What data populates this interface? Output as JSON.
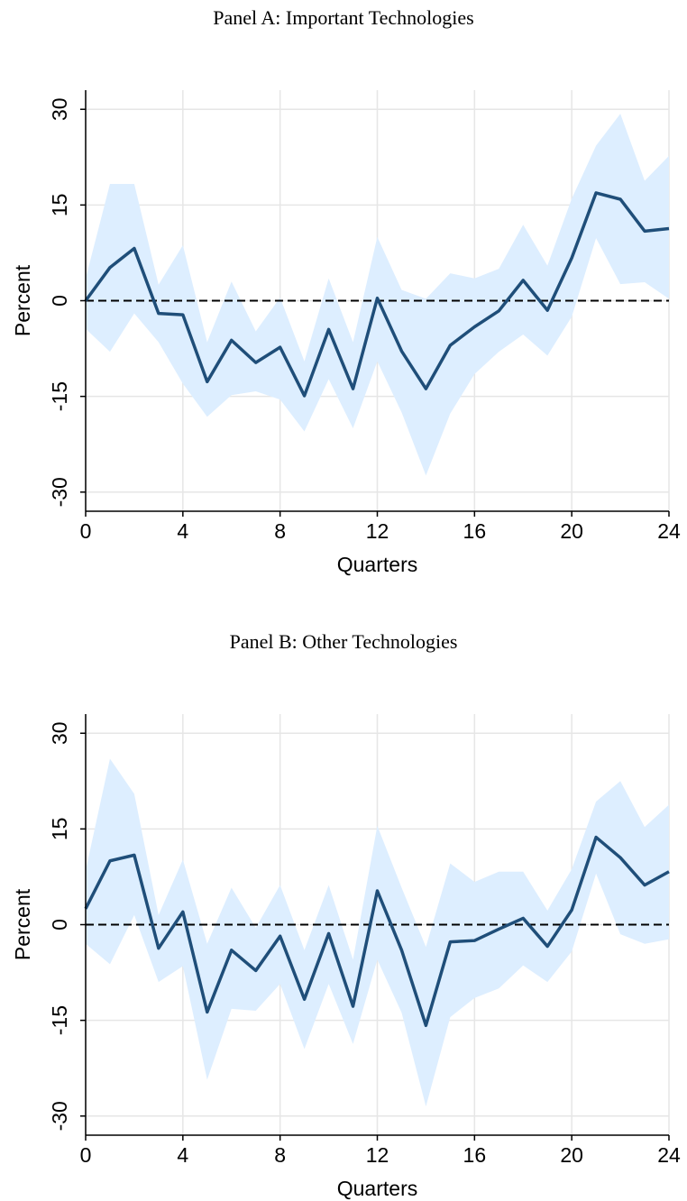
{
  "chart_data": [
    {
      "type": "line",
      "title": "Panel A: Important Technologies",
      "xlabel": "Quarters",
      "ylabel": "Percent",
      "x": [
        0,
        1,
        2,
        3,
        4,
        5,
        6,
        7,
        8,
        9,
        10,
        11,
        12,
        13,
        14,
        15,
        16,
        17,
        18,
        19,
        20,
        21,
        22,
        23,
        24
      ],
      "values": [
        0,
        5.2,
        8.2,
        -2,
        -2.2,
        -12.7,
        -6.2,
        -9.7,
        -7.3,
        -14.9,
        -4.5,
        -13.8,
        0.4,
        -7.9,
        -13.8,
        -7,
        -4.1,
        -1.6,
        3.2,
        -1.5,
        6.7,
        16.9,
        15.9,
        10.9,
        11.3
      ],
      "ci_upper": [
        3.5,
        18.3,
        18.3,
        2.5,
        8.7,
        -6.5,
        3,
        -4.8,
        0.5,
        -9.5,
        3.5,
        -6.5,
        10,
        1.7,
        0.3,
        4.3,
        3.5,
        5,
        11.9,
        5.5,
        16,
        24.3,
        29.3,
        18.8,
        22.7
      ],
      "ci_lower": [
        -4.4,
        -8,
        -2,
        -6.5,
        -13,
        -18.2,
        -14.8,
        -14.2,
        -15.5,
        -20.5,
        -12.3,
        -20,
        -9.5,
        -17.5,
        -27.4,
        -17.7,
        -11.5,
        -8,
        -5.3,
        -8.6,
        -2.5,
        9.8,
        2.6,
        2.9,
        0.3
      ],
      "color": "#1f4e79",
      "band_color": "#ddeeff",
      "hline": 0,
      "xlim": [
        0,
        24
      ],
      "xticks": [
        0,
        4,
        8,
        12,
        16,
        20,
        24
      ],
      "ylim": [
        -33,
        33
      ],
      "yticks": [
        30,
        15,
        0,
        -15,
        -30
      ],
      "grid": true
    },
    {
      "type": "line",
      "title": "Panel B: Other Technologies",
      "xlabel": "Quarters",
      "ylabel": "Percent",
      "x": [
        0,
        1,
        2,
        3,
        4,
        5,
        6,
        7,
        8,
        9,
        10,
        11,
        12,
        13,
        14,
        15,
        16,
        17,
        18,
        19,
        20,
        21,
        22,
        23,
        24
      ],
      "values": [
        2.5,
        10,
        10.9,
        -3.7,
        2,
        -13.7,
        -4,
        -7.2,
        -1.8,
        -11.7,
        -1.4,
        -12.8,
        5.3,
        -4,
        -15.8,
        -2.7,
        -2.5,
        -0.7,
        1,
        -3.4,
        2.3,
        13.7,
        10.5,
        6.2,
        8.3
      ],
      "ci_upper": [
        8.5,
        26,
        20.5,
        1.5,
        10.2,
        -3,
        5.8,
        -0.5,
        6.2,
        -4,
        6.2,
        -5.5,
        15.5,
        5.8,
        -3.5,
        9.6,
        6.7,
        8.3,
        8.3,
        2.2,
        8.7,
        19.3,
        22.5,
        15.3,
        18.8
      ],
      "ci_lower": [
        -3,
        -6.2,
        1.5,
        -9,
        -6.5,
        -24.3,
        -13.2,
        -13.5,
        -9.3,
        -19.5,
        -9.3,
        -18.7,
        -5.5,
        -13.8,
        -28.5,
        -14.5,
        -11.5,
        -10,
        -6.4,
        -9,
        -4.2,
        8,
        -1.5,
        -3,
        -2.3
      ],
      "color": "#1f4e79",
      "band_color": "#ddeeff",
      "hline": 0,
      "xlim": [
        0,
        24
      ],
      "xticks": [
        0,
        4,
        8,
        12,
        16,
        20,
        24
      ],
      "ylim": [
        -33,
        33
      ],
      "yticks": [
        30,
        15,
        0,
        -15,
        -30
      ],
      "grid": true
    }
  ]
}
